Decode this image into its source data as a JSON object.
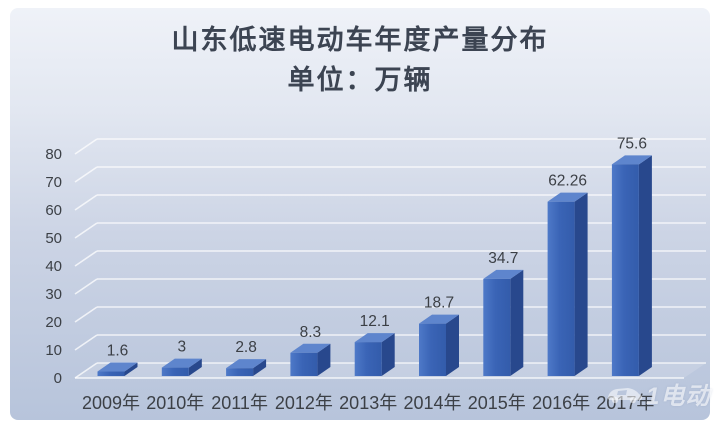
{
  "title": {
    "line1": "山东低速电动车年度产量分布",
    "line2": "单位：万辆"
  },
  "watermark": {
    "icon": "car-icon",
    "text": "1电动"
  },
  "chart_data": {
    "type": "bar",
    "style": "3d-column",
    "title": "山东低速电动车年度产量分布",
    "subtitle": "单位：万辆",
    "categories": [
      "2009年",
      "2010年",
      "2011年",
      "2012年",
      "2013年",
      "2014年",
      "2015年",
      "2016年",
      "2017年"
    ],
    "values": [
      1.6,
      3,
      2.8,
      8.3,
      12.1,
      18.7,
      34.7,
      62.26,
      75.6
    ],
    "value_labels": [
      "1.6",
      "3",
      "2.8",
      "8.3",
      "12.1",
      "18.7",
      "34.7",
      "62.26",
      "75.6"
    ],
    "xlabel": "",
    "ylabel": "",
    "ylim": [
      0,
      80
    ],
    "yticks": [
      0,
      10,
      20,
      30,
      40,
      50,
      60,
      70,
      80
    ],
    "grid": true,
    "legend": "none",
    "colors": {
      "bar_front_light": "#4e79c8",
      "bar_front": "#3a64b6",
      "bar_front_dark": "#335cab",
      "bar_top": "#5e85cd",
      "bar_side": "#28488d",
      "gridline": "#ffffff",
      "tick_label": "#3c4046",
      "value_label": "#3b3f45",
      "title": "#3c4452",
      "bg_top": "#eff2f8",
      "bg_bottom": "#b7c4db"
    }
  }
}
